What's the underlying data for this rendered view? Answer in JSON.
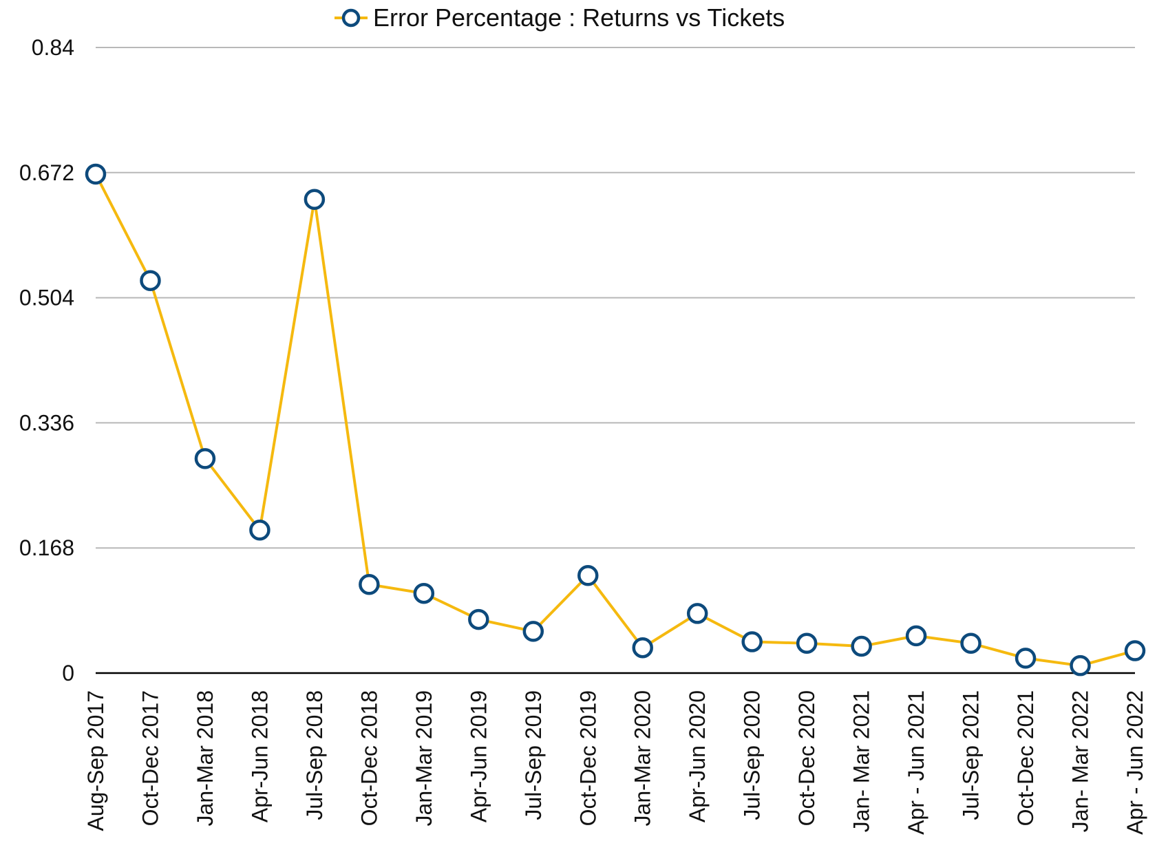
{
  "chart_data": {
    "type": "line",
    "categories": [
      "Aug-Sep 2017",
      "Oct-Dec 2017",
      "Jan-Mar 2018",
      "Apr-Jun 2018",
      "Jul-Sep 2018",
      "Oct-Dec 2018",
      "Jan-Mar 2019",
      "Apr-Jun 2019",
      "Jul-Sep 2019",
      "Oct-Dec 2019",
      "Jan-Mar 2020",
      "Apr-Jun 2020",
      "Jul-Sep 2020",
      "Oct-Dec 2020",
      "Jan- Mar 2021",
      "Apr - Jun 2021",
      "Jul-Sep 2021",
      "Oct-Dec 2021",
      "Jan- Mar 2022",
      "Apr - Jun 2022"
    ],
    "series": [
      {
        "name": "Error Percentage : Returns vs Tickets",
        "color": "#f5b90f",
        "marker_color": "#0d4a7c",
        "values": [
          0.67,
          0.527,
          0.288,
          0.192,
          0.636,
          0.119,
          0.107,
          0.072,
          0.056,
          0.131,
          0.034,
          0.08,
          0.042,
          0.04,
          0.036,
          0.05,
          0.04,
          0.02,
          0.01,
          0.03
        ]
      }
    ],
    "ylim": [
      0,
      0.84
    ],
    "yticks": [
      0,
      0.168,
      0.336,
      0.504,
      0.672,
      0.84
    ],
    "grid": true,
    "legend": "top"
  }
}
